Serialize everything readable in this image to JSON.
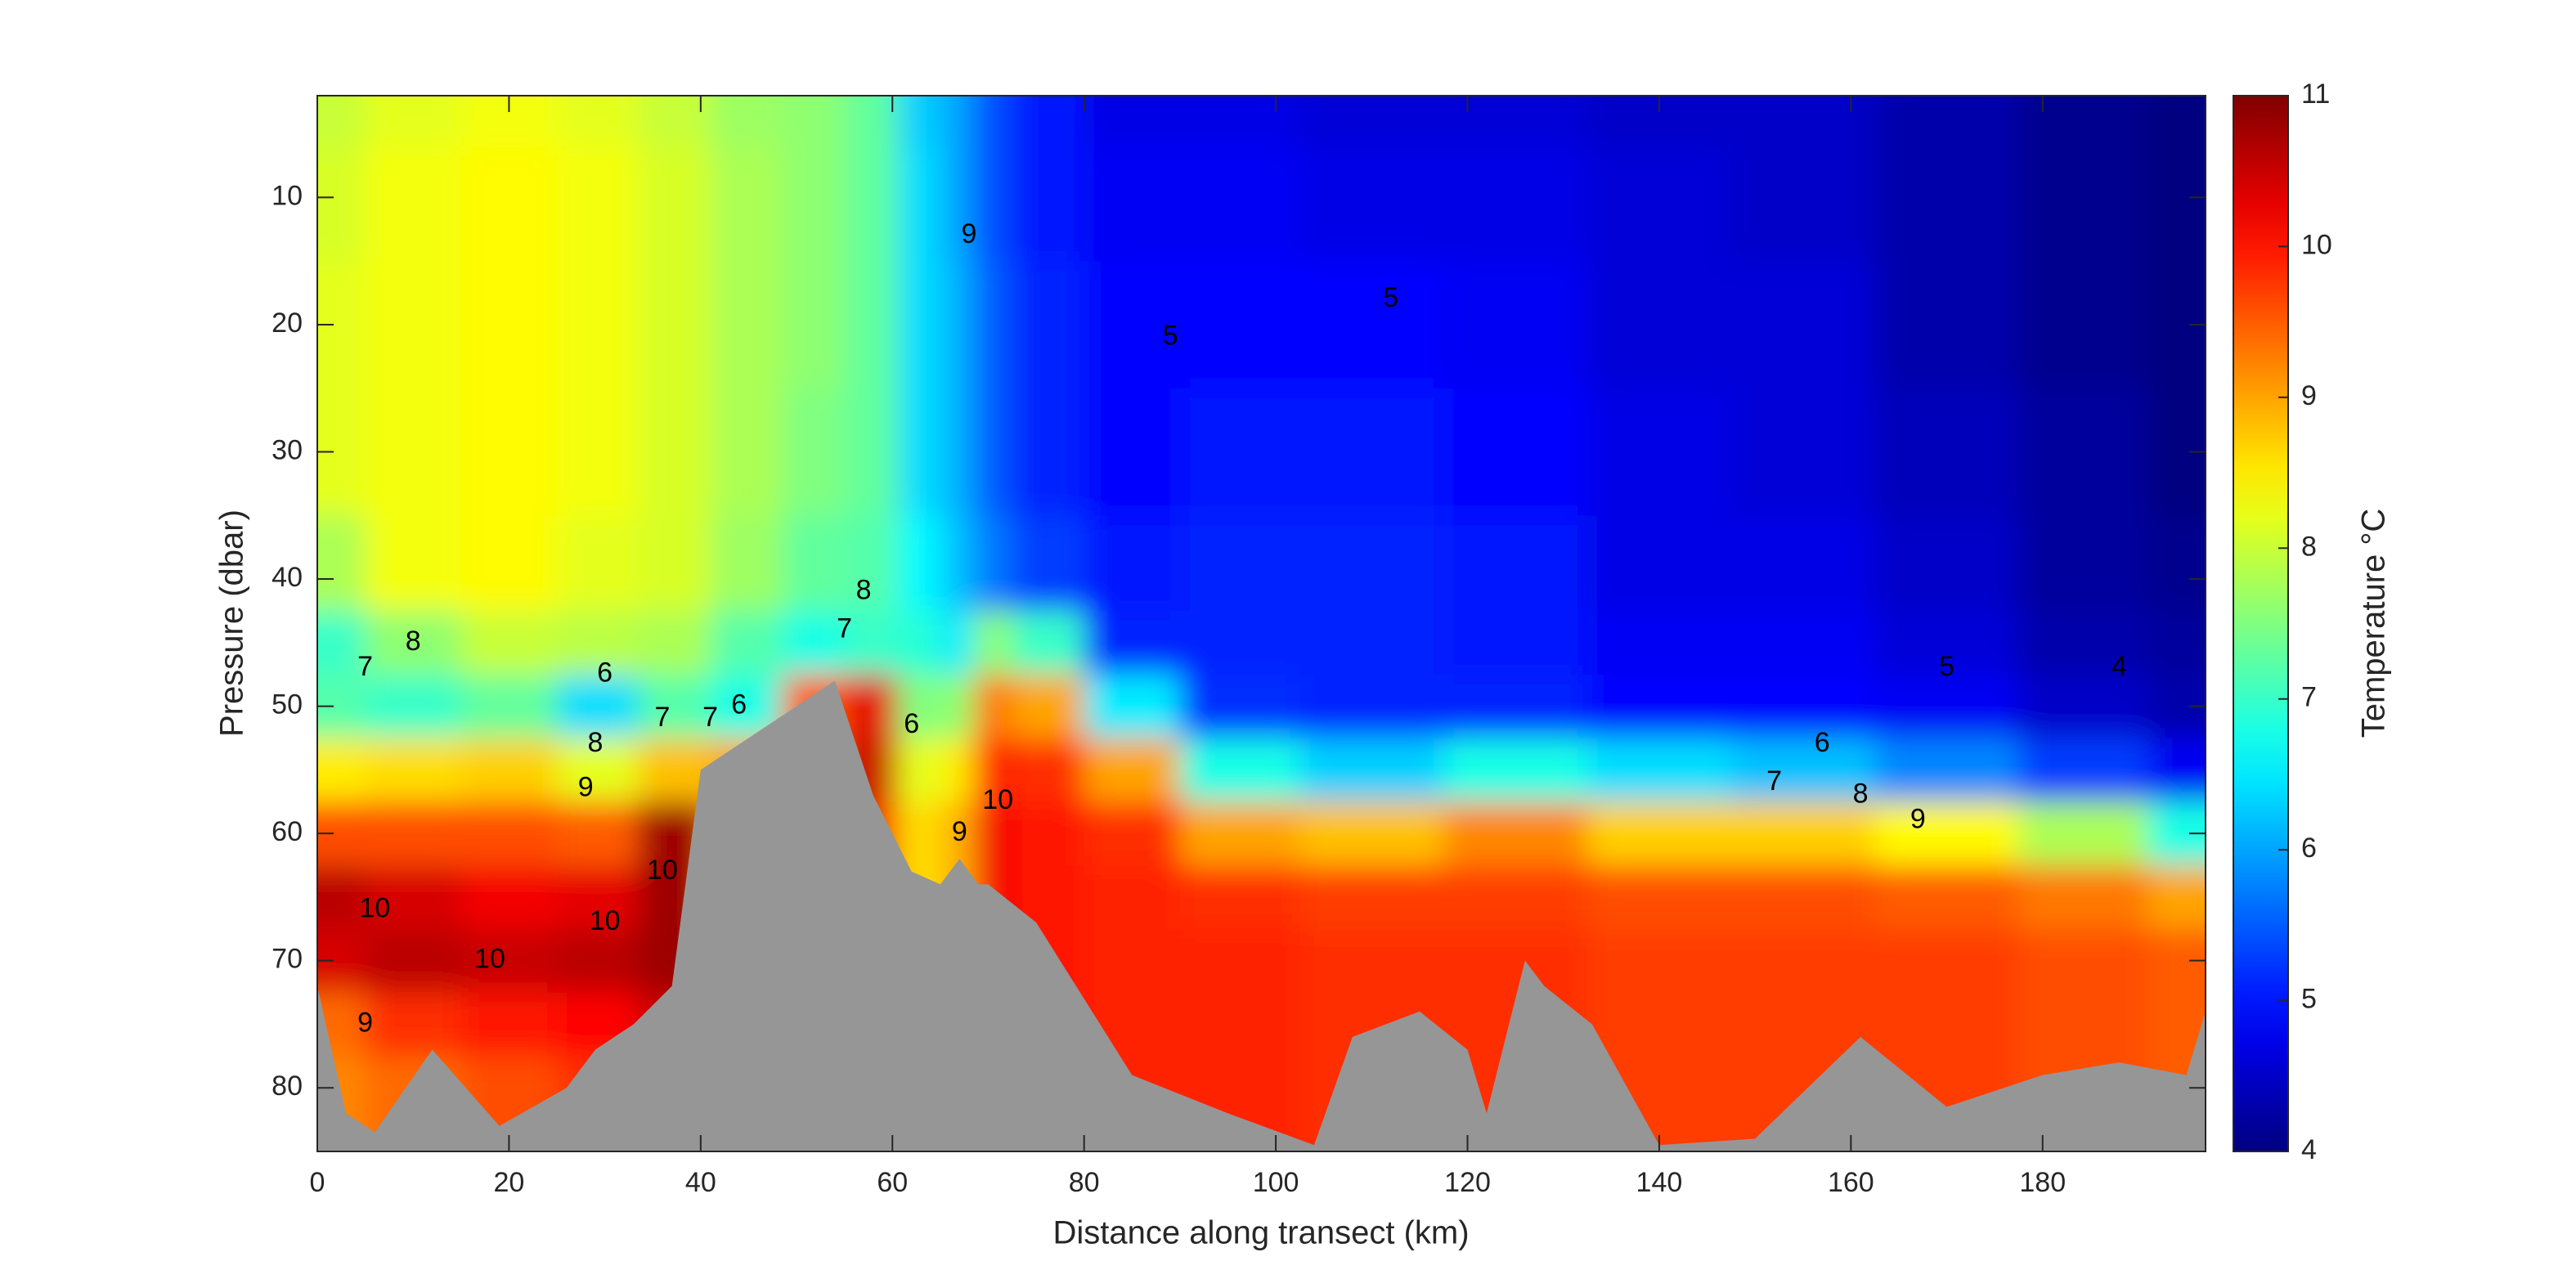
{
  "chart_data": {
    "type": "heatmap",
    "xlabel": "Distance along transect (km)",
    "ylabel": "Pressure (dbar)",
    "colorbar_label": "Temperature °C",
    "colormap": "jet",
    "xlim": [
      0,
      197
    ],
    "ylim": [
      2,
      85
    ],
    "y_reversed": true,
    "xticks": [
      0,
      20,
      40,
      60,
      80,
      100,
      120,
      140,
      160,
      180
    ],
    "yticks": [
      10,
      20,
      30,
      40,
      50,
      60,
      70,
      80
    ],
    "clim": [
      4,
      11
    ],
    "cticks": [
      4,
      5,
      6,
      7,
      8,
      9,
      10,
      11
    ],
    "x": [
      0,
      10,
      20,
      30,
      37,
      45,
      52,
      58,
      63,
      67,
      70,
      75,
      85,
      95,
      110,
      125,
      140,
      155,
      170,
      185,
      197
    ],
    "y": [
      2,
      10,
      20,
      30,
      40,
      45,
      50,
      55,
      60,
      65,
      70,
      75,
      80,
      85
    ],
    "z": [
      [
        8.0,
        8.1,
        8.2,
        8.2,
        7.8,
        7.0,
        7.2,
        8.5,
        9.6,
        10.6,
        10.4,
        9.4,
        9.2,
        9.2
      ],
      [
        8.2,
        8.3,
        8.3,
        8.3,
        8.3,
        7.6,
        7.0,
        8.6,
        9.6,
        10.4,
        10.6,
        9.8,
        9.4,
        9.4
      ],
      [
        8.3,
        8.4,
        8.4,
        8.4,
        8.4,
        8.0,
        7.3,
        8.7,
        9.6,
        10.2,
        10.5,
        10.0,
        9.6,
        9.6
      ],
      [
        8.2,
        8.3,
        8.3,
        8.3,
        8.2,
        7.9,
        6.4,
        8.2,
        9.5,
        10.3,
        10.6,
        10.1,
        9.8,
        9.8
      ],
      [
        8.0,
        8.1,
        8.1,
        8.1,
        8.1,
        7.8,
        7.2,
        8.8,
        10.8,
        10.8,
        10.8,
        10.5,
        10.5,
        10.5
      ],
      [
        7.7,
        7.8,
        7.8,
        7.8,
        7.7,
        7.2,
        6.8,
        9.0,
        9.0,
        9.0,
        9.0,
        9.0,
        9.0,
        9.0
      ],
      [
        7.6,
        7.6,
        7.6,
        7.5,
        7.3,
        6.8,
        9.5,
        9.5,
        9.5,
        9.5,
        9.5,
        9.5,
        9.5,
        9.5
      ],
      [
        7.3,
        7.3,
        7.3,
        7.3,
        7.2,
        7.0,
        10.3,
        10.5,
        10.2,
        10.0,
        10.0,
        10.0,
        10.0,
        10.0
      ],
      [
        6.3,
        6.4,
        6.4,
        6.4,
        6.6,
        6.9,
        7.5,
        8.2,
        8.6,
        8.6,
        8.6,
        8.6,
        8.6,
        8.6
      ],
      [
        6.0,
        6.0,
        6.1,
        6.1,
        6.2,
        6.5,
        7.6,
        8.5,
        8.9,
        8.9,
        8.9,
        8.9,
        8.9,
        8.9
      ],
      [
        5.4,
        5.4,
        5.5,
        5.5,
        5.7,
        7.6,
        9.3,
        9.9,
        10.2,
        10.2,
        10.2,
        10.2,
        10.2,
        10.2
      ],
      [
        5.0,
        5.0,
        5.1,
        5.1,
        5.3,
        7.0,
        9.0,
        9.8,
        10.0,
        10.0,
        10.0,
        10.0,
        10.0,
        10.0
      ],
      [
        4.7,
        4.8,
        4.9,
        4.9,
        5.0,
        5.1,
        6.5,
        9.0,
        9.8,
        9.9,
        9.9,
        9.9,
        9.9,
        9.9
      ],
      [
        4.7,
        4.8,
        4.9,
        5.0,
        5.1,
        5.1,
        5.2,
        6.8,
        9.0,
        9.8,
        9.9,
        9.9,
        9.9,
        9.9
      ],
      [
        4.6,
        4.7,
        4.9,
        5.0,
        5.1,
        5.1,
        5.1,
        6.3,
        8.8,
        9.7,
        9.8,
        9.8,
        9.8,
        9.8
      ],
      [
        4.6,
        4.7,
        4.8,
        4.9,
        5.0,
        5.0,
        5.1,
        6.8,
        9.2,
        9.7,
        9.8,
        9.8,
        9.8,
        9.8
      ],
      [
        4.5,
        4.6,
        4.6,
        4.7,
        4.7,
        4.8,
        4.9,
        6.4,
        8.7,
        9.6,
        9.7,
        9.7,
        9.7,
        9.7
      ],
      [
        4.5,
        4.5,
        4.6,
        4.6,
        4.7,
        4.8,
        4.9,
        6.2,
        8.7,
        9.6,
        9.7,
        9.7,
        9.7,
        9.7
      ],
      [
        4.3,
        4.3,
        4.3,
        4.4,
        4.5,
        4.6,
        4.8,
        5.8,
        8.4,
        9.5,
        9.7,
        9.7,
        9.7,
        9.7
      ],
      [
        4.1,
        4.1,
        4.1,
        4.2,
        4.2,
        4.3,
        4.5,
        5.3,
        7.8,
        9.3,
        9.6,
        9.6,
        9.6,
        9.6
      ],
      [
        4.0,
        4.0,
        4.0,
        4.0,
        4.1,
        4.2,
        4.3,
        4.8,
        6.8,
        9.0,
        9.5,
        9.5,
        9.5,
        9.5
      ]
    ],
    "bathymetry": {
      "color": "#969696",
      "x": [
        0,
        3,
        6,
        12,
        19,
        26,
        29,
        33,
        37,
        40,
        54,
        58,
        62,
        65,
        67,
        69,
        70,
        75,
        85,
        95,
        104,
        108,
        115,
        120,
        122,
        126,
        128,
        133,
        140,
        150,
        161,
        170,
        180,
        188,
        195,
        197
      ],
      "pressure": [
        72,
        82,
        83.5,
        77,
        83,
        80,
        77,
        75,
        72,
        55,
        48,
        57,
        63,
        64,
        62,
        64,
        64,
        67,
        79,
        82,
        84.5,
        76,
        74,
        77,
        82,
        70,
        72,
        75,
        84.5,
        84,
        76,
        81.5,
        79,
        78,
        79,
        74
      ]
    },
    "contour_labels": [
      {
        "value": 8,
        "x": 10,
        "y": 45
      },
      {
        "value": 7,
        "x": 5,
        "y": 47
      },
      {
        "value": 6,
        "x": 30,
        "y": 47.5
      },
      {
        "value": 8,
        "x": 29,
        "y": 53
      },
      {
        "value": 9,
        "x": 28,
        "y": 56.5
      },
      {
        "value": 7,
        "x": 36,
        "y": 51
      },
      {
        "value": 6,
        "x": 44,
        "y": 50
      },
      {
        "value": 7,
        "x": 41,
        "y": 51
      },
      {
        "value": 8,
        "x": 57,
        "y": 41
      },
      {
        "value": 7,
        "x": 55,
        "y": 44
      },
      {
        "value": 10,
        "x": 6,
        "y": 66
      },
      {
        "value": 10,
        "x": 30,
        "y": 67
      },
      {
        "value": 10,
        "x": 36,
        "y": 63
      },
      {
        "value": 10,
        "x": 18,
        "y": 70
      },
      {
        "value": 9,
        "x": 5,
        "y": 75
      },
      {
        "value": 6,
        "x": 62,
        "y": 51.5
      },
      {
        "value": 9,
        "x": 68,
        "y": 13
      },
      {
        "value": 5,
        "x": 89,
        "y": 21
      },
      {
        "value": 5,
        "x": 112,
        "y": 18
      },
      {
        "value": 9,
        "x": 67,
        "y": 60
      },
      {
        "value": 10,
        "x": 71,
        "y": 57.5
      },
      {
        "value": 5,
        "x": 170,
        "y": 47
      },
      {
        "value": 4,
        "x": 188,
        "y": 47
      },
      {
        "value": 6,
        "x": 157,
        "y": 53
      },
      {
        "value": 7,
        "x": 152,
        "y": 56
      },
      {
        "value": 8,
        "x": 161,
        "y": 57
      },
      {
        "value": 9,
        "x": 167,
        "y": 59
      }
    ]
  }
}
